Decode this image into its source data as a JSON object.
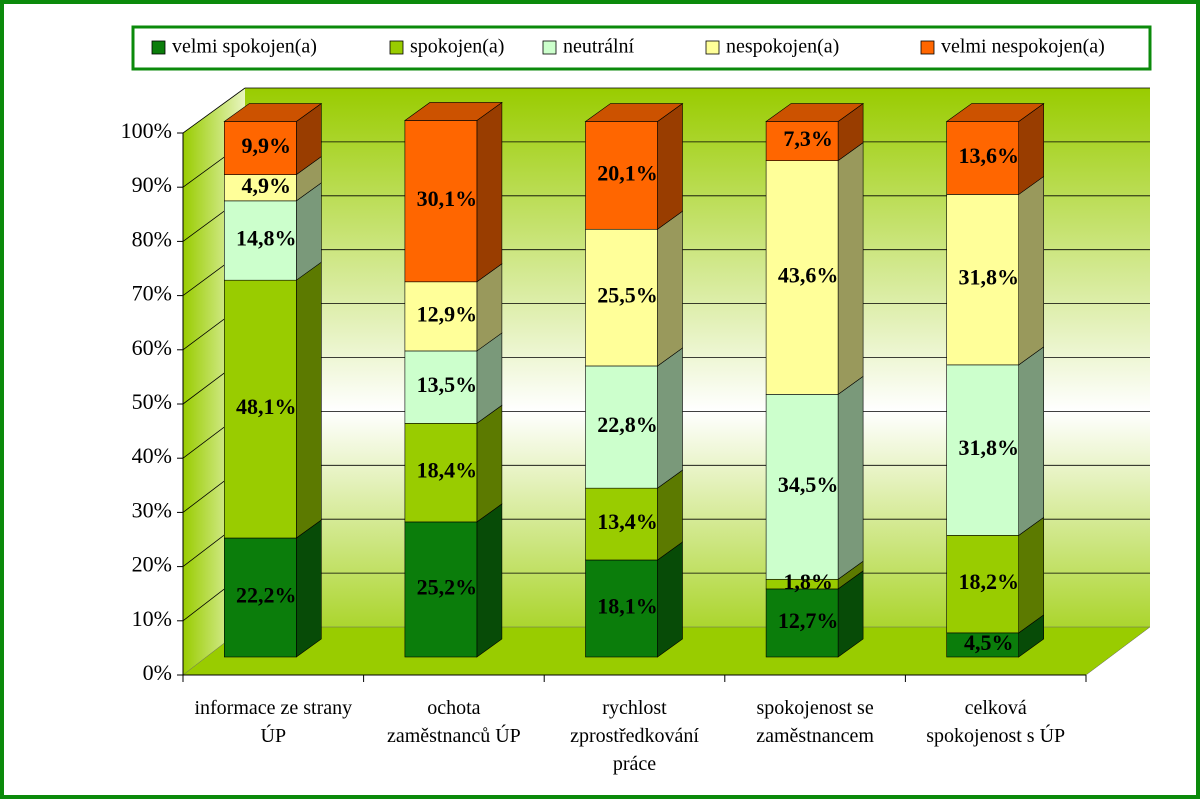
{
  "chart_data": {
    "type": "bar",
    "stacked": true,
    "categories": [
      "informace ze strany ÚP",
      "ochota zaměstnanců ÚP",
      "rychlost zprostředkování práce",
      "spokojenost se zaměstnancem",
      "celková spokojenost s ÚP"
    ],
    "series": [
      {
        "name": "velmi spokojen(a)",
        "color": "#0b7d0b",
        "values": [
          22.2,
          25.2,
          18.1,
          12.7,
          4.5
        ],
        "value_labels": [
          "22,2%",
          "25,2%",
          "18,1%",
          "12,7%",
          "4,5%"
        ]
      },
      {
        "name": "spokojen(a)",
        "color": "#99cc00",
        "values": [
          48.1,
          18.4,
          13.4,
          1.8,
          18.2
        ],
        "value_labels": [
          "48,1%",
          "18,4%",
          "13,4%",
          "1,8%",
          "18,2%"
        ]
      },
      {
        "name": "neutrální",
        "color": "#ccffcc",
        "values": [
          14.8,
          13.5,
          22.8,
          34.5,
          31.8
        ],
        "value_labels": [
          "14,8%",
          "13,5%",
          "22,8%",
          "34,5%",
          "31,8%"
        ]
      },
      {
        "name": "nespokojen(a)",
        "color": "#ffff99",
        "values": [
          4.9,
          12.9,
          25.5,
          43.6,
          31.8
        ],
        "value_labels": [
          "4,9%",
          "12,9%",
          "25,5%",
          "43,6%",
          "31,8%"
        ]
      },
      {
        "name": "velmi nespokojen(a)",
        "color": "#ff6600",
        "values": [
          9.9,
          30.1,
          20.1,
          7.3,
          13.6
        ],
        "value_labels": [
          "9,9%",
          "30,1%",
          "20,1%",
          "7,3%",
          "13,6%"
        ]
      }
    ],
    "ylim": [
      0,
      100
    ],
    "yticks": [
      {
        "value": 0,
        "label": "0%"
      },
      {
        "value": 10,
        "label": "10%"
      },
      {
        "value": 20,
        "label": "20%"
      },
      {
        "value": 30,
        "label": "30%"
      },
      {
        "value": 40,
        "label": "40%"
      },
      {
        "value": 50,
        "label": "50%"
      },
      {
        "value": 60,
        "label": "60%"
      },
      {
        "value": 70,
        "label": "70%"
      },
      {
        "value": 80,
        "label": "80%"
      },
      {
        "value": 90,
        "label": "90%"
      },
      {
        "value": 100,
        "label": "100%"
      }
    ],
    "grid": true,
    "legend": "top"
  }
}
